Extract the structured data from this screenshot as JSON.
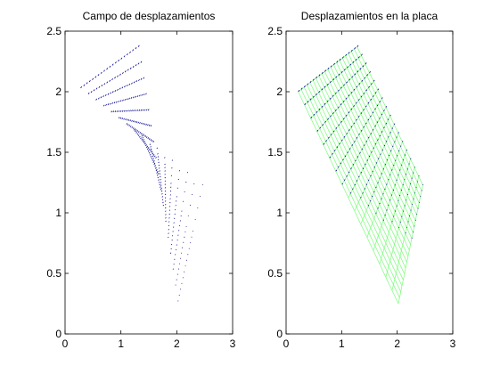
{
  "chart_data": [
    {
      "type": "quiver",
      "title": "Campo de desplazamientos",
      "xlabel": "",
      "ylabel": "",
      "xlim": [
        0,
        3
      ],
      "ylim": [
        0,
        2.5
      ],
      "xticks": [
        0,
        1,
        2,
        3
      ],
      "yticks": [
        0,
        0.5,
        1,
        1.5,
        2,
        2.5
      ],
      "grid": false,
      "arrow_color": "#00008B",
      "undeformed_corners": {
        "top_left": [
          0.25,
          2.0
        ],
        "top_right": [
          1.25,
          2.37
        ],
        "bottom_right": [
          2.02,
          0.25
        ],
        "bottom_left": [
          2.5,
          1.23
        ]
      },
      "deformed_corners": {
        "top_left": [
          0.28,
          2.03
        ],
        "top_right": [
          1.31,
          2.37
        ],
        "bottom_right": [
          2.46,
          1.23
        ],
        "bottom_left": [
          2.02,
          0.27
        ]
      }
    },
    {
      "type": "quiver_mesh",
      "title": "Desplazamientos en la placa",
      "xlabel": "",
      "ylabel": "",
      "xlim": [
        0,
        3
      ],
      "ylim": [
        0,
        2.5
      ],
      "xticks": [
        0,
        1,
        2,
        3
      ],
      "yticks": [
        0,
        0.5,
        1,
        1.5,
        2,
        2.5
      ],
      "grid": false,
      "arrow_color": "#00008B",
      "mesh_color": "#7CFC7C",
      "mesh_corners": {
        "top_left": [
          0.22,
          2.0
        ],
        "top_right": [
          1.28,
          2.37
        ],
        "right": [
          2.46,
          1.23
        ],
        "bottom": [
          2.02,
          0.25
        ]
      }
    }
  ]
}
